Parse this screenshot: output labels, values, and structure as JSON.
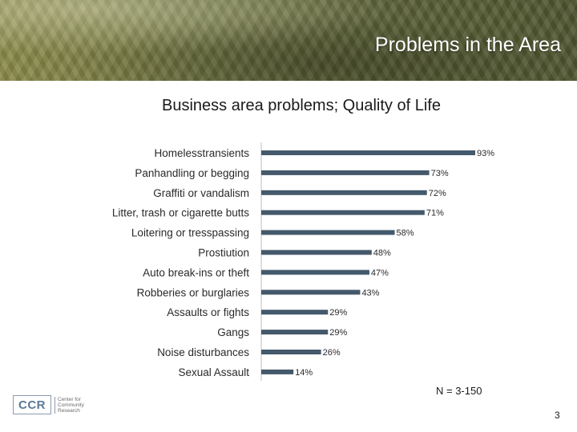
{
  "header": {
    "title": "Problems in the Area"
  },
  "footer": {
    "n_label": "N = 3-150",
    "page_number": "3",
    "logo": {
      "abbr": "CCR",
      "lines": [
        "Center for",
        "Community",
        "Research"
      ]
    }
  },
  "chart_data": {
    "type": "bar",
    "orientation": "horizontal",
    "title": "Business area problems; Quality of Life",
    "categories": [
      "Homelesstransients",
      "Panhandling or begging",
      "Graffiti or vandalism",
      "Litter, trash or cigarette butts",
      "Loitering or tresspassing",
      "Prostiution",
      "Auto break-ins or theft",
      "Robberies or burglaries",
      "Assaults or fights",
      "Gangs",
      "Noise disturbances",
      "Sexual Assault"
    ],
    "values": [
      93,
      73,
      72,
      71,
      58,
      48,
      47,
      43,
      29,
      29,
      26,
      14
    ],
    "value_labels": [
      "93%",
      "73%",
      "72%",
      "71%",
      "58%",
      "48%",
      "47%",
      "43%",
      "29%",
      "29%",
      "26%",
      "14%"
    ],
    "xlim": [
      0,
      100
    ],
    "bar_color": "#44596b",
    "grid": false,
    "legend": "none"
  }
}
